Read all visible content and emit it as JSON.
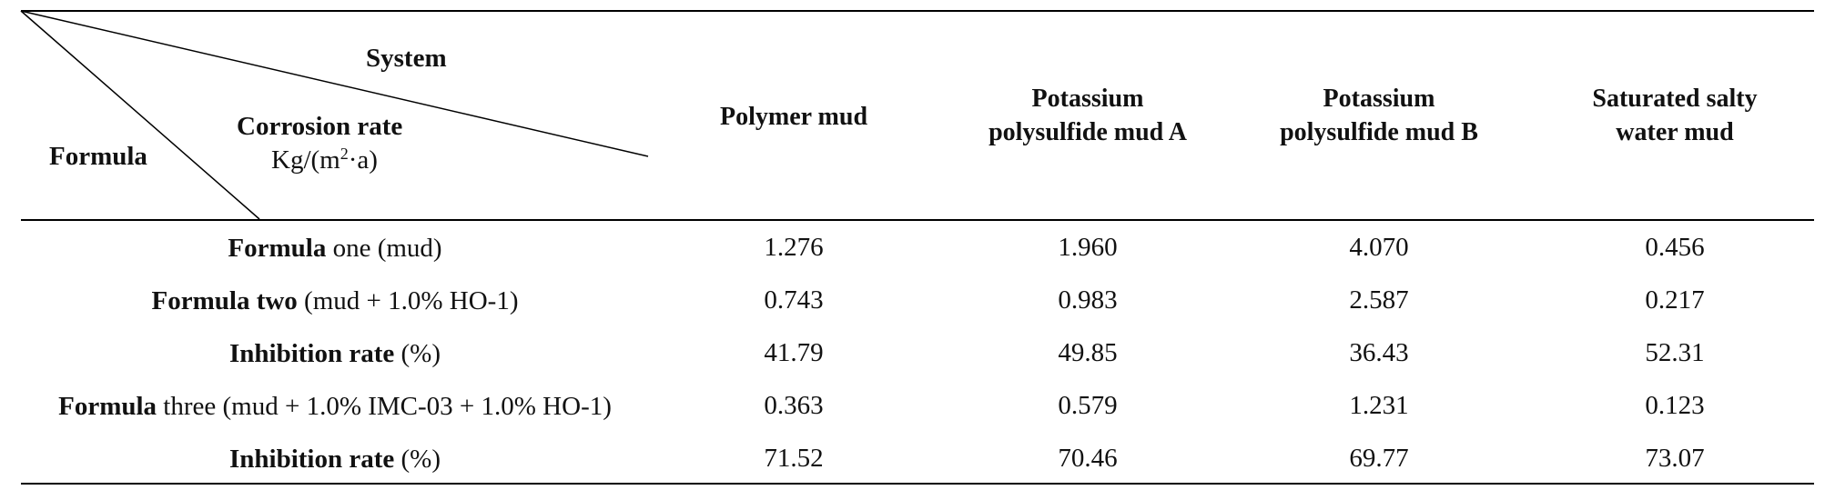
{
  "table": {
    "corner": {
      "system": "System",
      "corrosion_rate": "Corrosion rate",
      "unit_prefix": "Kg/(m",
      "unit_sup": "2",
      "unit_suffix": "·a)",
      "formula": "Formula"
    },
    "columns": [
      {
        "line1": "Polymer mud",
        "line2": ""
      },
      {
        "line1": "Potassium",
        "line2": "polysulfide mud A"
      },
      {
        "line1": "Potassium",
        "line2": "polysulfide mud B"
      },
      {
        "line1": "Saturated salty",
        "line2": "water mud"
      }
    ],
    "rows": [
      {
        "label_bold": "Formula",
        "label_rest": " one (mud)",
        "values": [
          "1.276",
          "1.960",
          "4.070",
          "0.456"
        ]
      },
      {
        "label_bold": "Formula two",
        "label_rest": " (mud + 1.0% HO-1)",
        "values": [
          "0.743",
          "0.983",
          "2.587",
          "0.217"
        ]
      },
      {
        "label_bold": "Inhibition rate",
        "label_rest": " (%)",
        "values": [
          "41.79",
          "49.85",
          "36.43",
          "52.31"
        ]
      },
      {
        "label_bold": "Formula",
        "label_rest": " three (mud + 1.0% IMC-03 + 1.0% HO-1)",
        "values": [
          "0.363",
          "0.579",
          "1.231",
          "0.123"
        ]
      },
      {
        "label_bold": "Inhibition rate",
        "label_rest": " (%)",
        "values": [
          "71.52",
          "70.46",
          "69.77",
          "73.07"
        ]
      }
    ]
  }
}
